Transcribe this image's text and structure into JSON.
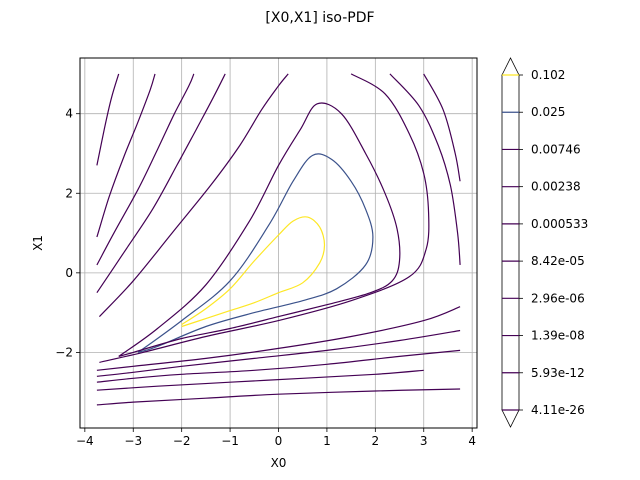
{
  "chart_data": {
    "type": "contour",
    "title": "[X0,X1] iso-PDF",
    "xlabel": "X0",
    "ylabel": "X1",
    "xlim": [
      -4.1,
      4.1
    ],
    "ylim": [
      -3.9,
      5.4
    ],
    "xticks": [
      -4,
      -3,
      -2,
      -1,
      0,
      1,
      2,
      3,
      4
    ],
    "yticks": [
      -2,
      0,
      2,
      4
    ],
    "grid": true,
    "colorbar": {
      "extend": "both",
      "levels": [
        "0.102",
        "0.025",
        "0.00746",
        "0.00238",
        "0.000533",
        "8.42e-05",
        "2.96e-06",
        "1.39e-08",
        "5.93e-12",
        "4.11e-26"
      ],
      "colors": [
        "#fde725",
        "#3b528b",
        "#440154",
        "#440154",
        "#440154",
        "#440154",
        "#440154",
        "#440154",
        "#440154",
        "#440154"
      ]
    },
    "contours": [
      {
        "level": "0.102",
        "color": "#fde725",
        "x": [
          -2.0,
          -1.5,
          -1.0,
          -0.5,
          0.0,
          0.3,
          0.6,
          0.85,
          0.95,
          0.85,
          0.5,
          0.0,
          -0.5,
          -1.0,
          -1.5,
          -2.0
        ],
        "y": [
          -1.3,
          -0.9,
          -0.4,
          0.3,
          0.95,
          1.3,
          1.4,
          1.15,
          0.7,
          0.25,
          -0.25,
          -0.5,
          -0.75,
          -0.95,
          -1.15,
          -1.35
        ]
      },
      {
        "level": "0.025",
        "color": "#3b528b",
        "x": [
          -2.9,
          -2.0,
          -1.0,
          -0.2,
          0.3,
          0.7,
          1.1,
          1.5,
          1.8,
          1.95,
          1.8,
          1.2,
          0.5,
          -0.5,
          -1.5,
          -2.5,
          -2.9
        ],
        "y": [
          -2.0,
          -1.2,
          -0.2,
          1.2,
          2.3,
          2.95,
          2.85,
          2.3,
          1.6,
          0.9,
          0.2,
          -0.4,
          -0.7,
          -1.0,
          -1.35,
          -1.85,
          -2.0
        ]
      },
      {
        "level": "0.00746",
        "color": "#440154",
        "x": [
          -3.3,
          -2.5,
          -1.5,
          -0.6,
          0.0,
          0.45,
          0.8,
          1.3,
          1.8,
          2.2,
          2.45,
          2.5,
          2.35,
          1.9,
          1.0,
          0.0,
          -1.0,
          -2.0,
          -3.0,
          -3.3
        ],
        "y": [
          -2.1,
          -1.4,
          -0.3,
          1.3,
          2.7,
          3.6,
          4.25,
          4.0,
          3.0,
          2.0,
          1.1,
          0.3,
          -0.2,
          -0.5,
          -0.8,
          -1.1,
          -1.4,
          -1.65,
          -2.0,
          -2.1
        ]
      },
      {
        "level": "0.00238-a",
        "color": "#440154",
        "x": [
          -3.7,
          -3.0,
          -2.2,
          -1.4,
          -0.8,
          -0.35,
          0.0,
          0.2
        ],
        "y": [
          -1.1,
          -0.2,
          1.0,
          2.2,
          3.2,
          4.1,
          4.7,
          5.0
        ]
      },
      {
        "level": "0.00238-b",
        "color": "#440154",
        "x": [
          1.5,
          2.2,
          2.7,
          3.0,
          3.1,
          3.05,
          2.7,
          1.5,
          0.0,
          -1.5,
          -2.8,
          -3.7
        ],
        "y": [
          5.0,
          4.5,
          3.5,
          2.5,
          1.5,
          0.6,
          -0.1,
          -0.7,
          -1.2,
          -1.6,
          -2.0,
          -2.25
        ]
      },
      {
        "level": "0.000533-a",
        "color": "#440154",
        "x": [
          -3.75,
          -3.2,
          -2.6,
          -2.1,
          -1.7,
          -1.35,
          -1.1
        ],
        "y": [
          -0.5,
          0.5,
          1.6,
          2.7,
          3.6,
          4.4,
          5.0
        ]
      },
      {
        "level": "0.000533-b",
        "color": "#440154",
        "x": [
          2.3,
          2.9,
          3.3,
          3.55,
          3.7,
          3.75
        ],
        "y": [
          5.0,
          4.2,
          3.2,
          2.2,
          1.0,
          0.2
        ]
      },
      {
        "level": "0.000533-c",
        "color": "#440154",
        "x": [
          3.75,
          3.0,
          1.5,
          0.0,
          -1.5,
          -3.0,
          -3.75
        ],
        "y": [
          -0.85,
          -1.2,
          -1.6,
          -1.9,
          -2.15,
          -2.35,
          -2.45
        ]
      },
      {
        "level": "8.42e-05-a",
        "color": "#440154",
        "x": [
          -3.75,
          -3.4,
          -2.9,
          -2.5,
          -2.15,
          -1.85,
          -1.75
        ],
        "y": [
          0.2,
          1.0,
          2.1,
          3.1,
          4.0,
          4.7,
          5.0
        ]
      },
      {
        "level": "8.42e-05-b",
        "color": "#440154",
        "x": [
          3.0,
          3.4,
          3.65,
          3.75
        ],
        "y": [
          5.0,
          4.1,
          3.0,
          2.3
        ]
      },
      {
        "level": "8.42e-05-c",
        "color": "#440154",
        "x": [
          3.75,
          2.5,
          1.0,
          -0.5,
          -2.0,
          -3.0,
          -3.75
        ],
        "y": [
          -1.45,
          -1.7,
          -1.95,
          -2.15,
          -2.35,
          -2.5,
          -2.6
        ]
      },
      {
        "level": "2.96e-06-a",
        "color": "#440154",
        "x": [
          -3.75,
          -3.5,
          -3.2,
          -2.9,
          -2.65,
          -2.55
        ],
        "y": [
          0.9,
          1.9,
          2.9,
          3.8,
          4.6,
          5.0
        ]
      },
      {
        "level": "2.96e-06-b",
        "color": "#440154",
        "x": [
          3.75,
          2.5,
          1.0,
          -0.5,
          -2.0,
          -3.0,
          -3.75
        ],
        "y": [
          -1.95,
          -2.1,
          -2.3,
          -2.45,
          -2.55,
          -2.65,
          -2.75
        ]
      },
      {
        "level": "1.39e-08-a",
        "color": "#440154",
        "x": [
          -3.75,
          -3.6,
          -3.45,
          -3.3
        ],
        "y": [
          2.7,
          3.6,
          4.4,
          5.0
        ]
      },
      {
        "level": "1.39e-08-b",
        "color": "#440154",
        "x": [
          3.0,
          2.0,
          0.5,
          -1.0,
          -2.5,
          -3.75
        ],
        "y": [
          -2.45,
          -2.55,
          -2.65,
          -2.75,
          -2.85,
          -2.95
        ]
      },
      {
        "level": "5.93e-12",
        "color": "#440154",
        "x": [
          3.75,
          2.0,
          0.0,
          -1.5,
          -3.0,
          -3.75
        ],
        "y": [
          -2.92,
          -2.97,
          -3.05,
          -3.15,
          -3.25,
          -3.32
        ]
      }
    ]
  }
}
